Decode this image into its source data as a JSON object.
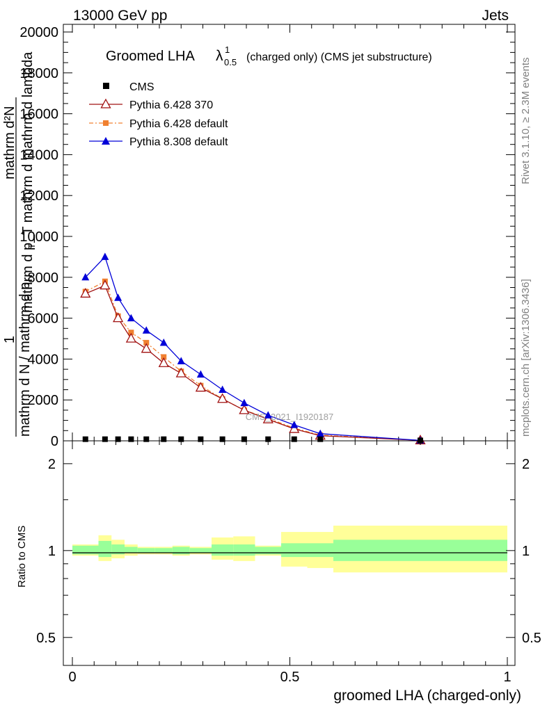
{
  "header": {
    "energy_label": "13000 GeV pp",
    "process_label": "Jets",
    "rivet_label": "Rivet 3.1.10, ≥ 2.3M events",
    "mcplots_label": "mcplots.cern.ch [arXiv:1306.3436]",
    "analysis_label": "CMS_2021_I1920187"
  },
  "title": {
    "main": "Groomed LHA",
    "lambda_symbol": "λ",
    "lambda_sup": "1",
    "lambda_sub": "0.5",
    "suffix": "(charged only) (CMS jet substructure)"
  },
  "axes": {
    "y_label_top": "mathrm d²N",
    "y_label_mid": "mathrm d p_T mathrm d mathrm d lambda",
    "y_label_one": "1",
    "y_label_bottom": "mathrm d N / mathrm d p",
    "y_label_bottom_sub": "T",
    "ratio_ylabel": "Ratio to CMS",
    "xlabel": "groomed LHA (charged-only)"
  },
  "legend": [
    {
      "name": "CMS",
      "color": "#000000",
      "marker": "square"
    },
    {
      "name": "Pythia 6.428 370",
      "color": "#a01010",
      "marker": "open-triangle"
    },
    {
      "name": "Pythia 6.428 default",
      "color": "#f08030",
      "marker": "square"
    },
    {
      "name": "Pythia 8.308 default",
      "color": "#0000d8",
      "marker": "filled-triangle"
    }
  ],
  "chart_data": {
    "type": "line",
    "xlim": [
      0,
      1
    ],
    "ylim": [
      0,
      20000
    ],
    "yticks": [
      "0",
      "2000",
      "4000",
      "6000",
      "8000",
      "10000",
      "12000",
      "14000",
      "16000",
      "18000",
      "20000"
    ],
    "xticks": [
      "0",
      "0.5",
      "1"
    ],
    "x": [
      0.03,
      0.075,
      0.105,
      0.135,
      0.17,
      0.21,
      0.25,
      0.295,
      0.345,
      0.395,
      0.45,
      0.51,
      0.57,
      0.8
    ],
    "bin_edges": [
      0.0,
      0.06,
      0.09,
      0.12,
      0.15,
      0.19,
      0.23,
      0.27,
      0.32,
      0.37,
      0.42,
      0.48,
      0.54,
      0.6,
      1.0
    ],
    "series": [
      {
        "name": "CMS",
        "values": [
          80,
          80,
          80,
          80,
          80,
          80,
          80,
          80,
          80,
          80,
          80,
          80,
          80,
          20
        ]
      },
      {
        "name": "Pythia 6.428 370",
        "values": [
          7200,
          7600,
          6000,
          5000,
          4500,
          3800,
          3300,
          2600,
          2050,
          1500,
          1050,
          580,
          250,
          20
        ]
      },
      {
        "name": "Pythia 6.428 default",
        "values": [
          7300,
          7800,
          6100,
          5300,
          4800,
          4100,
          3400,
          2700,
          2050,
          1500,
          1100,
          620,
          280,
          20
        ]
      },
      {
        "name": "Pythia 8.308 default",
        "values": [
          8000,
          9000,
          7000,
          6000,
          5400,
          4800,
          3900,
          3250,
          2500,
          1850,
          1250,
          780,
          350,
          20
        ]
      }
    ],
    "ratio": {
      "ylim": [
        0.4,
        2.4
      ],
      "log_scale": true,
      "yticks": [
        "0.5",
        "1",
        "2"
      ],
      "band_inner": [
        [
          0.97,
          1.04
        ],
        [
          0.95,
          1.08
        ],
        [
          0.97,
          1.05
        ],
        [
          0.98,
          1.03
        ],
        [
          0.98,
          1.02
        ],
        [
          0.98,
          1.02
        ],
        [
          0.97,
          1.03
        ],
        [
          0.98,
          1.02
        ],
        [
          0.96,
          1.05
        ],
        [
          0.96,
          1.05
        ],
        [
          0.97,
          1.03
        ],
        [
          0.95,
          1.06
        ],
        [
          0.95,
          1.06
        ],
        [
          0.92,
          1.09
        ]
      ],
      "band_outer": [
        [
          0.96,
          1.05
        ],
        [
          0.92,
          1.13
        ],
        [
          0.94,
          1.09
        ],
        [
          0.96,
          1.05
        ],
        [
          0.97,
          1.03
        ],
        [
          0.97,
          1.03
        ],
        [
          0.96,
          1.04
        ],
        [
          0.97,
          1.03
        ],
        [
          0.93,
          1.11
        ],
        [
          0.92,
          1.12
        ],
        [
          0.96,
          1.04
        ],
        [
          0.88,
          1.16
        ],
        [
          0.87,
          1.16
        ],
        [
          0.84,
          1.22
        ]
      ]
    }
  }
}
